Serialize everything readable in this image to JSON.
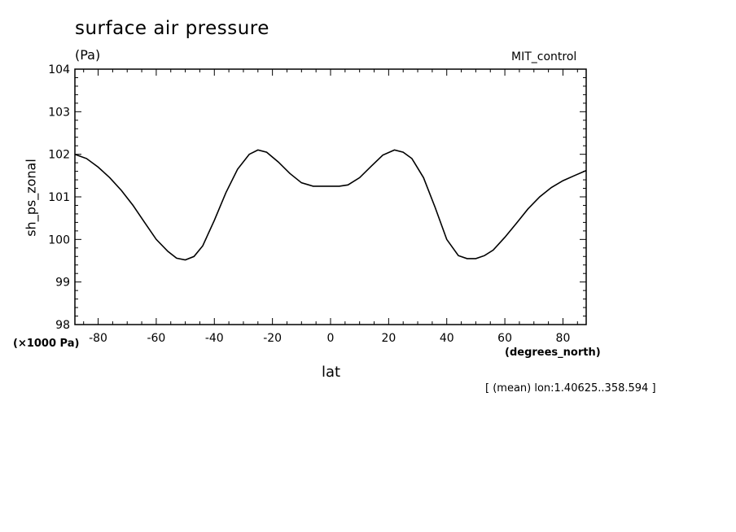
{
  "chart_data": {
    "type": "line",
    "title": "surface air pressure",
    "units": "(Pa)",
    "dataset": "MIT_control",
    "xlabel": "lat",
    "ylabel": "sh_ps_zonal",
    "x_units": "(degrees_north)",
    "y_scale_label": "(×1000 Pa)",
    "footnote": "[ (mean) lon:1.40625..358.594 ]",
    "xlim": [
      -88,
      88
    ],
    "ylim": [
      98,
      104
    ],
    "x_ticks": [
      -80,
      -60,
      -40,
      -20,
      0,
      20,
      40,
      60,
      80
    ],
    "x_tick_labels": [
      "-80",
      "-60",
      "-40",
      "-20",
      "0",
      "20",
      "40",
      "60",
      "80"
    ],
    "y_ticks": [
      98,
      99,
      100,
      101,
      102,
      103,
      104
    ],
    "y_tick_labels": [
      "98",
      "99",
      "100",
      "101",
      "102",
      "103",
      "104"
    ],
    "grid": false,
    "series": [
      {
        "x": [
          -88,
          -84,
          -80,
          -76,
          -72,
          -68,
          -64,
          -60,
          -56,
          -53,
          -50,
          -47,
          -44,
          -40,
          -36,
          -32,
          -28,
          -25,
          -22,
          -18,
          -14,
          -10,
          -6,
          -3,
          0,
          3,
          6,
          10,
          14,
          18,
          22,
          25,
          28,
          32,
          36,
          40,
          44,
          47,
          50,
          53,
          56,
          60,
          64,
          68,
          72,
          76,
          80,
          84,
          88
        ],
        "y": [
          102.0,
          101.9,
          101.7,
          101.45,
          101.15,
          100.8,
          100.4,
          100.0,
          99.72,
          99.56,
          99.52,
          99.6,
          99.85,
          100.45,
          101.1,
          101.65,
          102.0,
          102.1,
          102.05,
          101.82,
          101.55,
          101.33,
          101.25,
          101.25,
          101.25,
          101.25,
          101.28,
          101.45,
          101.72,
          101.98,
          102.1,
          102.05,
          101.9,
          101.45,
          100.75,
          100.0,
          99.62,
          99.55,
          99.55,
          99.62,
          99.75,
          100.05,
          100.38,
          100.72,
          101.0,
          101.22,
          101.38,
          101.5,
          101.62
        ]
      }
    ]
  }
}
